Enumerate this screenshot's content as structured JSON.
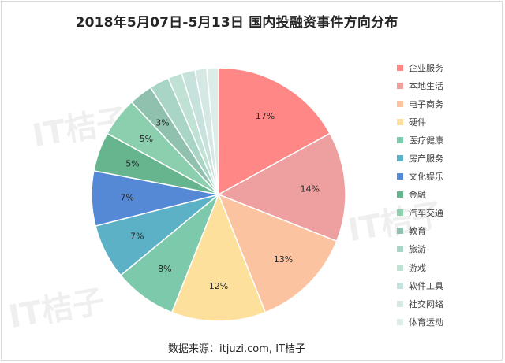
{
  "chart_data": {
    "type": "pie",
    "title": "2018年5月07日-5月13日  国内投融资事件方向分布",
    "source": "数据来源：itjuzi.com, IT桔子",
    "watermark": "IT桔子",
    "slices": [
      {
        "label": "企业服务",
        "value": 17,
        "color": "#ff8785",
        "show_label": true
      },
      {
        "label": "本地生活",
        "value": 14,
        "color": "#eea0a1",
        "show_label": true
      },
      {
        "label": "电子商务",
        "value": 13,
        "color": "#fbc3a0",
        "show_label": true
      },
      {
        "label": "硬件",
        "value": 12,
        "color": "#fde09b",
        "show_label": true
      },
      {
        "label": "医疗健康",
        "value": 8,
        "color": "#7dc9ab",
        "show_label": true
      },
      {
        "label": "房产服务",
        "value": 7,
        "color": "#5db1c7",
        "show_label": true
      },
      {
        "label": "文化娱乐",
        "value": 7,
        "color": "#5589d6",
        "show_label": true
      },
      {
        "label": "金融",
        "value": 5,
        "color": "#66b58f",
        "show_label": true
      },
      {
        "label": "汽车交通",
        "value": 5,
        "color": "#8ccfae",
        "show_label": true
      },
      {
        "label": "教育",
        "value": 3,
        "color": "#8fc1ae",
        "show_label": true
      },
      {
        "label": "旅游",
        "value": 2.5,
        "color": "#a8d5c6",
        "show_label": false
      },
      {
        "label": "游戏",
        "value": 1.8,
        "color": "#bfe2d5",
        "show_label": false
      },
      {
        "label": "软件工具",
        "value": 1.7,
        "color": "#c7e2dc",
        "show_label": false
      },
      {
        "label": "社交网络",
        "value": 1.5,
        "color": "#d5e8e4",
        "show_label": false
      },
      {
        "label": "体育运动",
        "value": 1.5,
        "color": "#dcece7",
        "show_label": false
      }
    ],
    "value_suffix": "%",
    "legend_position": "right"
  }
}
